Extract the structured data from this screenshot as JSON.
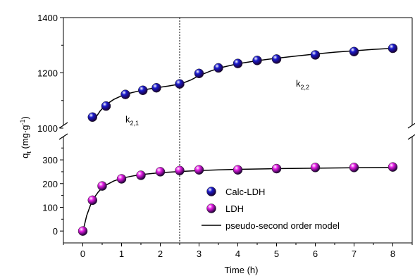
{
  "chart_data": {
    "type": "scatter",
    "xlabel": "Time (h)",
    "ylabel_parts": {
      "main": "q",
      "sub": "t",
      "unit_open": " (mg·g",
      "unit_sup": "-1",
      "unit_close": ")"
    },
    "x_range": [
      -0.5,
      8.5
    ],
    "x_ticks": [
      0,
      1,
      2,
      3,
      4,
      5,
      6,
      7,
      8
    ],
    "upper_panel": {
      "y_range": [
        1000,
        1400
      ],
      "y_ticks": [
        1000,
        1200,
        1400
      ]
    },
    "lower_panel": {
      "y_range": [
        -50,
        410
      ],
      "y_ticks": [
        0,
        100,
        200,
        300
      ]
    },
    "vertical_line_x": 2.5,
    "annotations": [
      {
        "main": "k",
        "sub": "2,1",
        "x": 1.1,
        "y": 1020
      },
      {
        "main": "k",
        "sub": "2,2",
        "x": 5.5,
        "y": 1150
      }
    ],
    "series": [
      {
        "name": "Calc-LDH",
        "color": "#1a1acc",
        "panel": "upper",
        "x": [
          0.25,
          0.6,
          1.1,
          1.55,
          1.9,
          2.5,
          3.0,
          3.5,
          4.0,
          4.5,
          5.0,
          6.0,
          7.0,
          8.0
        ],
        "y": [
          1040,
          1080,
          1122,
          1137,
          1146,
          1160,
          1198,
          1218,
          1234,
          1245,
          1250,
          1265,
          1277,
          1289
        ]
      },
      {
        "name": "LDH",
        "color": "#e61ee6",
        "panel": "lower",
        "x": [
          0,
          0.25,
          0.5,
          1.0,
          1.5,
          2.0,
          2.5,
          3.0,
          4.0,
          5.0,
          6.0,
          7.0,
          8.0
        ],
        "y": [
          0,
          130,
          190,
          220,
          235,
          250,
          255,
          258,
          258,
          263,
          268,
          268,
          270
        ]
      }
    ],
    "fit": {
      "name": "pseudo-second order model",
      "color": "#000000",
      "upper_x": [
        0.35,
        0.45,
        0.6,
        0.8,
        1.0,
        1.2,
        1.4,
        1.6,
        1.8,
        2.0,
        2.2,
        2.4,
        2.6,
        2.8,
        3.0,
        3.3,
        3.6,
        4.0,
        4.5,
        5.0,
        5.5,
        6.0,
        6.5,
        7.0,
        7.5,
        8.0
      ],
      "upper_y": [
        1042,
        1063,
        1085,
        1104,
        1117,
        1126,
        1133,
        1139,
        1144,
        1148,
        1152,
        1157,
        1164,
        1175,
        1190,
        1207,
        1220,
        1233,
        1244,
        1253,
        1261,
        1268,
        1275,
        1280,
        1285,
        1289
      ],
      "lower_x": [
        0.02,
        0.1,
        0.2,
        0.3,
        0.4,
        0.5,
        0.6,
        0.8,
        1.0,
        1.25,
        1.5,
        2.0,
        2.5,
        3.0,
        3.5,
        4.0,
        5.0,
        6.0,
        7.0,
        8.0
      ],
      "lower_y": [
        10,
        65,
        110,
        142,
        165,
        182,
        194,
        211,
        222,
        231,
        238,
        246,
        251,
        255,
        258,
        260,
        263,
        265,
        267,
        268
      ]
    },
    "legend": {
      "placement": "lower-right"
    }
  }
}
